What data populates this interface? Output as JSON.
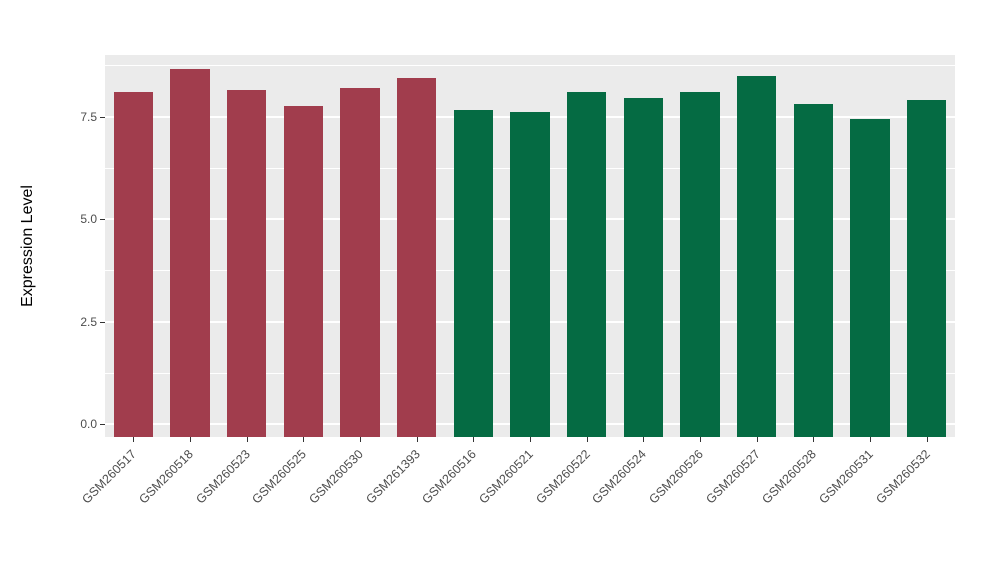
{
  "chart_data": {
    "type": "bar",
    "title": "",
    "xlabel": "",
    "ylabel": "Expression Level",
    "ylim": [
      0,
      9.0
    ],
    "yticks": [
      0.0,
      2.5,
      5.0,
      7.5
    ],
    "ytick_labels": [
      "0.0",
      "2.5",
      "5.0",
      "7.5"
    ],
    "categories": [
      "GSM260517",
      "GSM260518",
      "GSM260523",
      "GSM260525",
      "GSM260530",
      "GSM261393",
      "GSM260516",
      "GSM260521",
      "GSM260522",
      "GSM260524",
      "GSM260526",
      "GSM260527",
      "GSM260528",
      "GSM260531",
      "GSM260532"
    ],
    "values": [
      8.1,
      8.65,
      8.15,
      7.75,
      8.2,
      8.45,
      7.65,
      7.6,
      8.1,
      7.95,
      8.1,
      8.5,
      7.8,
      7.45,
      7.9
    ],
    "bar_groups": [
      0,
      0,
      0,
      0,
      0,
      0,
      1,
      1,
      1,
      1,
      1,
      1,
      1,
      1,
      1
    ],
    "group_colors": [
      "#A13D4D",
      "#056B43"
    ],
    "panel_background": "#EBEBEB",
    "grid_color": "#FFFFFF",
    "grid": true,
    "legend_position": "none",
    "bar_width_fraction": 0.7
  }
}
